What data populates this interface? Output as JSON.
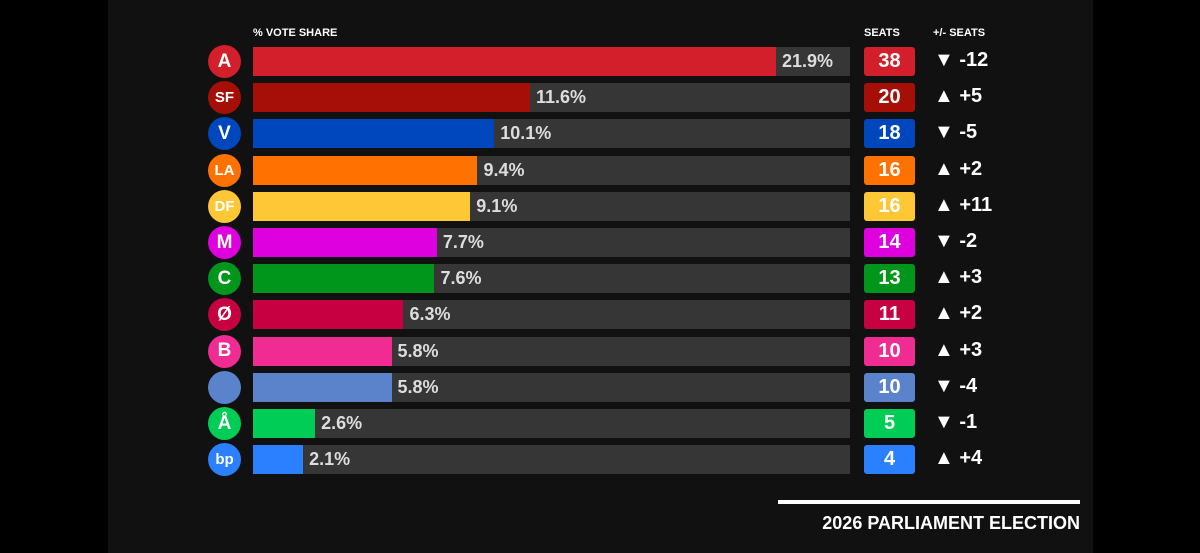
{
  "chart_data": {
    "type": "bar",
    "title": "2026 PARLIAMENT ELECTION",
    "xlabel": "% VOTE SHARE",
    "seats_label": "SEATS",
    "change_label": "+/- SEATS",
    "xlim": [
      0,
      25
    ],
    "parties": [
      {
        "logo": "A",
        "value": 21.9,
        "label": "21.9%",
        "seats": "38",
        "change": "▼ -12",
        "color": "#d21f2b"
      },
      {
        "logo": "SF",
        "value": 11.6,
        "label": "11.6%",
        "seats": "20",
        "change": "▲ +5",
        "color": "#a60f08"
      },
      {
        "logo": "V",
        "value": 10.1,
        "label": "10.1%",
        "seats": "18",
        "change": "▼ -5",
        "color": "#0047be"
      },
      {
        "logo": "LA",
        "value": 9.4,
        "label": "9.4%",
        "seats": "16",
        "change": "▲ +2",
        "color": "#ff7100"
      },
      {
        "logo": "DF",
        "value": 9.1,
        "label": "9.1%",
        "seats": "16",
        "change": "▲ +11",
        "color": "#fdc735"
      },
      {
        "logo": "M",
        "value": 7.7,
        "label": "7.7%",
        "seats": "14",
        "change": "▼ -2",
        "color": "#df00df"
      },
      {
        "logo": "C",
        "value": 7.6,
        "label": "7.6%",
        "seats": "13",
        "change": "▲ +3",
        "color": "#00951b"
      },
      {
        "logo": "Ø",
        "value": 6.3,
        "label": "6.3%",
        "seats": "11",
        "change": "▲ +2",
        "color": "#c70042"
      },
      {
        "logo": "B",
        "value": 5.8,
        "label": "5.8%",
        "seats": "10",
        "change": "▲ +3",
        "color": "#f02b92"
      },
      {
        "logo": "",
        "value": 5.8,
        "label": "5.8%",
        "seats": "10",
        "change": "▼ -4",
        "color": "#5b83cc"
      },
      {
        "logo": "Å",
        "value": 2.6,
        "label": "2.6%",
        "seats": "5",
        "change": "▼ -1",
        "color": "#00cd55"
      },
      {
        "logo": "bp",
        "value": 2.1,
        "label": "2.1%",
        "seats": "4",
        "change": "▲ +4",
        "color": "#2a80ff"
      }
    ]
  }
}
